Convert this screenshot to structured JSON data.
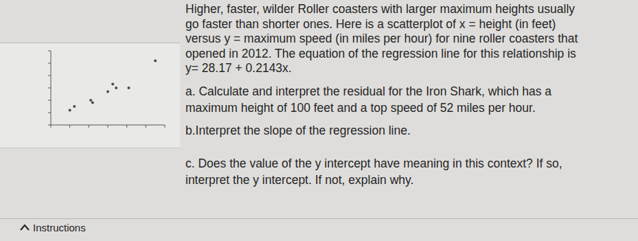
{
  "document": {
    "intro": [
      "Higher, faster, wilder Roller coasters with larger maximum heights usually",
      "go faster than shorter ones. Here is a scatterplot of x = height (in feet)",
      "versus y = maximum speed (in miles per hour) for nine roller coasters that",
      "opened in 2012. The equation of the regression line for this relationship is",
      "y= 28.17 + 0.2143x."
    ],
    "questions": [
      {
        "lines": [
          "a. Calculate and interpret the residual for the Iron Shark, which has a",
          "maximum height of 100 feet and a top speed of 52 miles per hour."
        ]
      },
      {
        "lines": [
          "b.Interpret the slope of the regression line."
        ]
      },
      {
        "lines": [
          "c. Does the value of the y intercept have meaning in this context? If so,",
          "interpret the y intercept. If not, explain why."
        ]
      }
    ],
    "footer": {
      "button": "Instructions"
    }
  },
  "chart_data": {
    "type": "scatter",
    "x": [
      100,
      112,
      155,
      160,
      200,
      213,
      222,
      255,
      325
    ],
    "values": [
      52,
      55,
      60,
      58,
      67,
      73,
      70,
      70,
      92
    ],
    "xlim": [
      50,
      350
    ],
    "xticks": [
      50,
      100,
      150,
      200,
      250,
      300,
      350
    ],
    "ylim": [
      40,
      100
    ],
    "yticks": [
      40,
      50,
      60,
      70,
      80,
      90,
      100
    ],
    "tick_labels": false,
    "color": "#4a4a4a",
    "marker": "circle"
  }
}
